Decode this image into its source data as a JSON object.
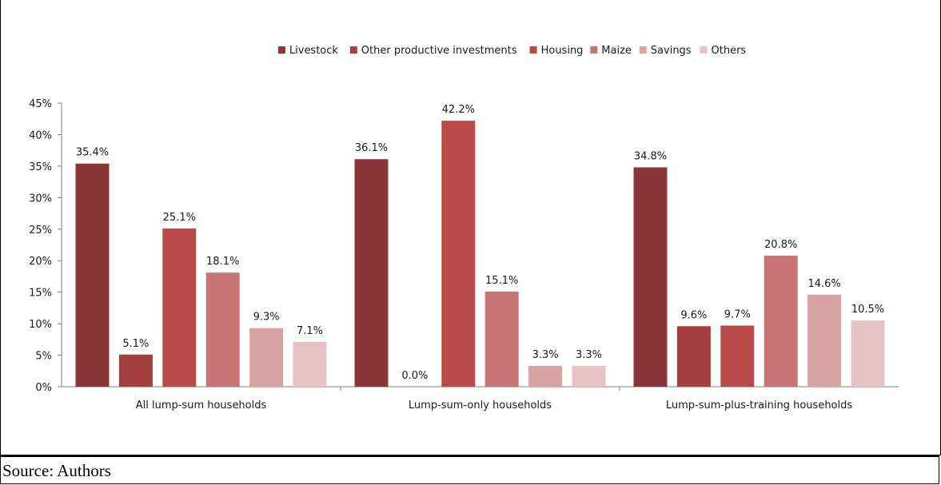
{
  "page": {
    "header_fragment": "",
    "source": "Source: Authors"
  },
  "chart_data": {
    "type": "bar",
    "title": "",
    "xlabel": "",
    "ylabel": "",
    "ylim": [
      0,
      45
    ],
    "y_ticks": [
      "0%",
      "5%",
      "10%",
      "15%",
      "20%",
      "25%",
      "30%",
      "35%",
      "40%",
      "45%"
    ],
    "categories": [
      "All lump-sum households",
      "Lump-sum-only households",
      "Lump-sum-plus-training households"
    ],
    "legend_position": "top",
    "grid": false,
    "series": [
      {
        "name": "Livestock",
        "color": "#8B3737",
        "values": [
          35.4,
          36.1,
          34.8
        ],
        "labels": [
          "35.4%",
          "36.1%",
          "34.8%"
        ]
      },
      {
        "name": "Other productive investments",
        "color": "#A53E3E",
        "values": [
          5.1,
          0.0,
          9.6
        ],
        "labels": [
          "5.1%",
          "0.0%",
          "9.6%"
        ]
      },
      {
        "name": "Housing",
        "color": "#BA4A47",
        "values": [
          25.1,
          42.2,
          9.7
        ],
        "labels": [
          "25.1%",
          "42.2%",
          "9.7%"
        ]
      },
      {
        "name": "Maize",
        "color": "#C87474",
        "values": [
          18.1,
          15.1,
          20.8
        ],
        "labels": [
          "18.1%",
          "15.1%",
          "20.8%"
        ]
      },
      {
        "name": "Savings",
        "color": "#D9A3A3",
        "values": [
          9.3,
          3.3,
          14.6
        ],
        "labels": [
          "9.3%",
          "3.3%",
          "14.6%"
        ]
      },
      {
        "name": "Others",
        "color": "#E6C3C4",
        "values": [
          7.1,
          3.3,
          10.5
        ],
        "labels": [
          "7.1%",
          "3.3%",
          "10.5%"
        ]
      }
    ]
  }
}
